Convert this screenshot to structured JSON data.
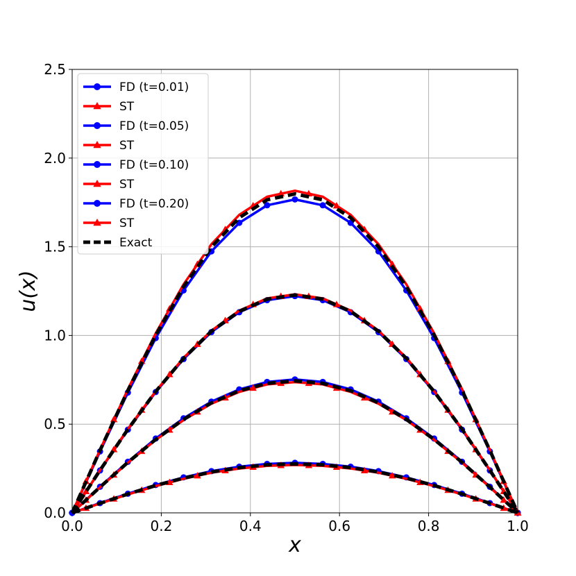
{
  "chart_data": {
    "type": "line",
    "xlabel": "x",
    "ylabel": "u(x)",
    "xlim": [
      0.0,
      1.0
    ],
    "ylim": [
      0.0,
      2.5
    ],
    "xticks": [
      "0.0",
      "0.2",
      "0.4",
      "0.6",
      "0.8",
      "1.0"
    ],
    "yticks": [
      "0.0",
      "0.5",
      "1.0",
      "1.5",
      "2.0",
      "2.5"
    ],
    "grid": true,
    "legend_position": "upper-left",
    "colors": {
      "fd": "#0000ff",
      "st": "#ff0000",
      "exact": "#000000"
    },
    "x": [
      0.0,
      0.0625,
      0.125,
      0.1875,
      0.25,
      0.3125,
      0.375,
      0.4375,
      0.5,
      0.5625,
      0.625,
      0.6875,
      0.75,
      0.8125,
      0.875,
      0.9375,
      1.0
    ],
    "series": [
      {
        "name": "FD (t=0.01)",
        "kind": "fd",
        "marker": "circle",
        "values": [
          0.0,
          0.346,
          0.678,
          0.985,
          1.254,
          1.474,
          1.635,
          1.734,
          1.767,
          1.734,
          1.635,
          1.474,
          1.254,
          0.985,
          0.678,
          0.346,
          0.0
        ]
      },
      {
        "name": "ST",
        "kind": "st",
        "marker": "triangle",
        "values": [
          0.0,
          0.355,
          0.697,
          1.012,
          1.288,
          1.514,
          1.68,
          1.782,
          1.816,
          1.782,
          1.68,
          1.514,
          1.288,
          1.012,
          0.697,
          0.355,
          0.0
        ]
      },
      {
        "name": "FD (t=0.05)",
        "kind": "fd",
        "marker": "circle",
        "values": [
          0.0,
          0.239,
          0.469,
          0.681,
          0.867,
          1.019,
          1.131,
          1.199,
          1.222,
          1.199,
          1.131,
          1.019,
          0.867,
          0.681,
          0.469,
          0.239,
          0.0
        ]
      },
      {
        "name": "ST",
        "kind": "st",
        "marker": "triangle",
        "values": [
          0.0,
          0.241,
          0.473,
          0.686,
          0.874,
          1.027,
          1.14,
          1.209,
          1.232,
          1.209,
          1.14,
          1.027,
          0.874,
          0.686,
          0.473,
          0.241,
          0.0
        ]
      },
      {
        "name": "FD (t=0.10)",
        "kind": "fd",
        "marker": "circle",
        "values": [
          0.0,
          0.147,
          0.288,
          0.419,
          0.533,
          0.627,
          0.696,
          0.738,
          0.752,
          0.738,
          0.696,
          0.627,
          0.533,
          0.419,
          0.288,
          0.147,
          0.0
        ]
      },
      {
        "name": "ST",
        "kind": "st",
        "marker": "triangle",
        "values": [
          0.0,
          0.144,
          0.283,
          0.411,
          0.523,
          0.615,
          0.682,
          0.724,
          0.737,
          0.724,
          0.682,
          0.615,
          0.523,
          0.411,
          0.283,
          0.144,
          0.0
        ]
      },
      {
        "name": "FD (t=0.20)",
        "kind": "fd",
        "marker": "circle",
        "values": [
          0.0,
          0.055,
          0.108,
          0.157,
          0.2,
          0.235,
          0.26,
          0.276,
          0.282,
          0.276,
          0.26,
          0.235,
          0.2,
          0.157,
          0.108,
          0.055,
          0.0
        ]
      },
      {
        "name": "ST",
        "kind": "st",
        "marker": "triangle",
        "values": [
          0.0,
          0.053,
          0.104,
          0.151,
          0.192,
          0.226,
          0.25,
          0.265,
          0.27,
          0.265,
          0.25,
          0.226,
          0.192,
          0.151,
          0.104,
          0.053,
          0.0
        ]
      },
      {
        "name": "Exact",
        "kind": "exact",
        "marker": "none",
        "values": [
          0.0,
          0.352,
          0.69,
          1.002,
          1.275,
          1.499,
          1.664,
          1.765,
          1.798,
          1.765,
          1.664,
          1.499,
          1.275,
          1.002,
          0.69,
          0.352,
          0.0
        ]
      },
      {
        "name": "Exact",
        "kind": "exact",
        "marker": "none",
        "legend": false,
        "values": [
          0.0,
          0.24,
          0.471,
          0.684,
          0.871,
          1.024,
          1.136,
          1.205,
          1.228,
          1.205,
          1.136,
          1.024,
          0.871,
          0.684,
          0.471,
          0.24,
          0.0
        ]
      },
      {
        "name": "Exact",
        "kind": "exact",
        "marker": "none",
        "legend": false,
        "values": [
          0.0,
          0.145,
          0.285,
          0.414,
          0.527,
          0.62,
          0.688,
          0.73,
          0.744,
          0.73,
          0.688,
          0.62,
          0.527,
          0.414,
          0.285,
          0.145,
          0.0
        ]
      },
      {
        "name": "Exact",
        "kind": "exact",
        "marker": "none",
        "legend": false,
        "values": [
          0.0,
          0.054,
          0.106,
          0.154,
          0.196,
          0.23,
          0.255,
          0.271,
          0.276,
          0.271,
          0.255,
          0.23,
          0.196,
          0.154,
          0.106,
          0.054,
          0.0
        ]
      }
    ]
  }
}
